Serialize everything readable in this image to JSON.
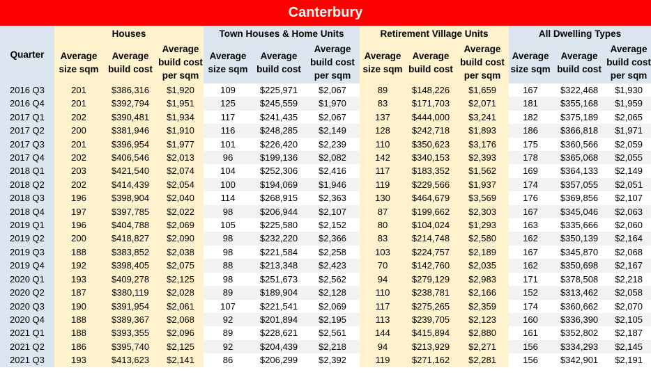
{
  "title": "Canterbury",
  "header": {
    "quarter": "Quarter",
    "groups": [
      "Houses",
      "Town Houses & Home Units",
      "Retirement Village Units",
      "All Dwelling Types"
    ],
    "subs": [
      "Average size sqm",
      "Average build cost",
      "Average build cost per sqm"
    ]
  },
  "colors": {
    "title_bg": "#ff0000",
    "blue": "#dce6f1",
    "yellow": "#fff2cc",
    "alt_row": "#f2f2f2"
  },
  "chart_data": {
    "type": "table",
    "title": "Canterbury",
    "columns": [
      "Quarter",
      "Houses Average size sqm",
      "Houses Average build cost",
      "Houses Average build cost per sqm",
      "Town Houses & Home Units Average size sqm",
      "Town Houses & Home Units Average build cost",
      "Town Houses & Home Units Average build cost per sqm",
      "Retirement Village Units Average size sqm",
      "Retirement Village Units Average build cost",
      "Retirement Village Units Average build cost per sqm",
      "All Dwelling Types Average size sqm",
      "All Dwelling Types Average build cost",
      "All Dwelling Types Average build cost per sqm"
    ],
    "rows": [
      [
        "2016 Q3",
        "201",
        "$386,316",
        "$1,920",
        "109",
        "$225,971",
        "$2,067",
        "89",
        "$148,226",
        "$1,659",
        "167",
        "$322,468",
        "$1,930"
      ],
      [
        "2016 Q4",
        "201",
        "$392,794",
        "$1,951",
        "125",
        "$245,559",
        "$1,970",
        "83",
        "$171,703",
        "$2,071",
        "181",
        "$355,168",
        "$1,959"
      ],
      [
        "2017 Q1",
        "202",
        "$390,481",
        "$1,934",
        "117",
        "$241,435",
        "$2,067",
        "137",
        "$444,000",
        "$3,241",
        "182",
        "$375,189",
        "$2,065"
      ],
      [
        "2017 Q2",
        "200",
        "$381,946",
        "$1,910",
        "116",
        "$248,285",
        "$2,149",
        "128",
        "$242,718",
        "$1,893",
        "186",
        "$366,818",
        "$1,971"
      ],
      [
        "2017 Q3",
        "201",
        "$396,954",
        "$1,977",
        "101",
        "$226,420",
        "$2,239",
        "110",
        "$350,623",
        "$3,176",
        "175",
        "$360,566",
        "$2,059"
      ],
      [
        "2017 Q4",
        "202",
        "$406,546",
        "$2,013",
        "96",
        "$199,136",
        "$2,082",
        "142",
        "$340,153",
        "$2,393",
        "178",
        "$365,068",
        "$2,055"
      ],
      [
        "2018 Q1",
        "203",
        "$421,540",
        "$2,074",
        "104",
        "$252,306",
        "$2,416",
        "117",
        "$183,352",
        "$1,562",
        "169",
        "$364,133",
        "$2,149"
      ],
      [
        "2018 Q2",
        "202",
        "$414,439",
        "$2,054",
        "100",
        "$194,069",
        "$1,946",
        "119",
        "$229,566",
        "$1,937",
        "174",
        "$357,055",
        "$2,051"
      ],
      [
        "2018 Q3",
        "196",
        "$398,904",
        "$2,040",
        "114",
        "$268,915",
        "$2,363",
        "130",
        "$464,679",
        "$3,569",
        "176",
        "$369,856",
        "$2,107"
      ],
      [
        "2018 Q4",
        "197",
        "$397,785",
        "$2,022",
        "98",
        "$206,944",
        "$2,107",
        "87",
        "$199,662",
        "$2,303",
        "167",
        "$345,046",
        "$2,063"
      ],
      [
        "2019 Q1",
        "196",
        "$404,788",
        "$2,069",
        "105",
        "$225,580",
        "$2,152",
        "80",
        "$104,024",
        "$1,293",
        "163",
        "$335,666",
        "$2,060"
      ],
      [
        "2019 Q2",
        "200",
        "$418,827",
        "$2,090",
        "98",
        "$232,220",
        "$2,366",
        "83",
        "$214,748",
        "$2,580",
        "162",
        "$350,139",
        "$2,164"
      ],
      [
        "2019 Q3",
        "188",
        "$383,852",
        "$2,038",
        "98",
        "$221,584",
        "$2,258",
        "103",
        "$224,757",
        "$2,189",
        "167",
        "$345,870",
        "$2,068"
      ],
      [
        "2019 Q4",
        "192",
        "$398,405",
        "$2,075",
        "88",
        "$213,348",
        "$2,423",
        "70",
        "$142,760",
        "$2,035",
        "162",
        "$350,698",
        "$2,167"
      ],
      [
        "2020 Q1",
        "193",
        "$409,278",
        "$2,125",
        "98",
        "$251,673",
        "$2,562",
        "94",
        "$279,129",
        "$2,983",
        "171",
        "$378,508",
        "$2,218"
      ],
      [
        "2020 Q2",
        "187",
        "$380,119",
        "$2,028",
        "89",
        "$189,904",
        "$2,128",
        "110",
        "$238,781",
        "$2,166",
        "152",
        "$313,462",
        "$2,058"
      ],
      [
        "2020 Q3",
        "190",
        "$391,954",
        "$2,061",
        "107",
        "$221,541",
        "$2,069",
        "117",
        "$275,265",
        "$2,359",
        "174",
        "$360,662",
        "$2,070"
      ],
      [
        "2020 Q4",
        "188",
        "$389,367",
        "$2,068",
        "92",
        "$201,894",
        "$2,195",
        "113",
        "$239,705",
        "$2,123",
        "160",
        "$336,390",
        "$2,105"
      ],
      [
        "2021 Q1",
        "188",
        "$393,355",
        "$2,096",
        "89",
        "$228,621",
        "$2,561",
        "144",
        "$415,894",
        "$2,880",
        "161",
        "$352,802",
        "$2,187"
      ],
      [
        "2021 Q2",
        "186",
        "$395,740",
        "$2,125",
        "92",
        "$204,439",
        "$2,218",
        "94",
        "$213,929",
        "$2,271",
        "156",
        "$334,293",
        "$2,145"
      ],
      [
        "2021 Q3",
        "193",
        "$413,623",
        "$2,141",
        "86",
        "$206,299",
        "$2,392",
        "119",
        "$271,162",
        "$2,281",
        "156",
        "$342,901",
        "$2,191"
      ]
    ]
  }
}
